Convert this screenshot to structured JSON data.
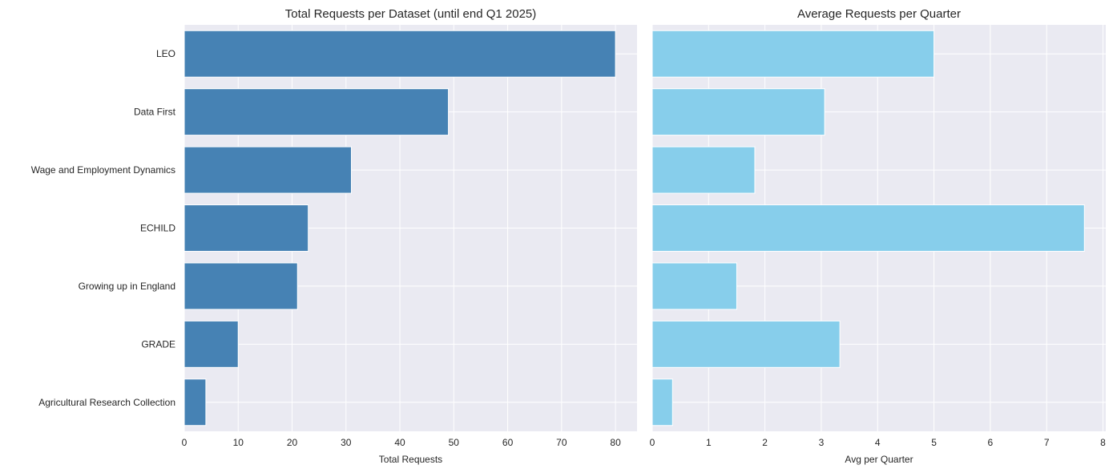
{
  "chart_data": [
    {
      "type": "bar",
      "orientation": "horizontal",
      "title": "Total Requests per Dataset (until end Q1 2025)",
      "xlabel": "Total Requests",
      "ylabel": "",
      "categories": [
        "LEO",
        "Data First",
        "Wage and Employment Dynamics",
        "ECHILD",
        "Growing up in England",
        "GRADE",
        "Agricultural Research Collection"
      ],
      "values": [
        80,
        49,
        31,
        23,
        21,
        10,
        4
      ],
      "xlim": [
        0,
        84
      ],
      "xticks": [
        0,
        10,
        20,
        30,
        40,
        50,
        60,
        70,
        80
      ],
      "color": "#4682b4",
      "grid": true
    },
    {
      "type": "bar",
      "orientation": "horizontal",
      "title": "Average Requests per Quarter",
      "xlabel": "Avg per Quarter",
      "ylabel": "",
      "categories": [
        "LEO",
        "Data First",
        "Wage and Employment Dynamics",
        "ECHILD",
        "Growing up in England",
        "GRADE",
        "Agricultural Research Collection"
      ],
      "values": [
        5.0,
        3.06,
        1.82,
        7.67,
        1.5,
        3.33,
        0.36
      ],
      "xlim": [
        0,
        8.05
      ],
      "xticks": [
        0,
        1,
        2,
        3,
        4,
        5,
        6,
        7,
        8
      ],
      "color": "#87ceeb",
      "grid": true
    }
  ]
}
